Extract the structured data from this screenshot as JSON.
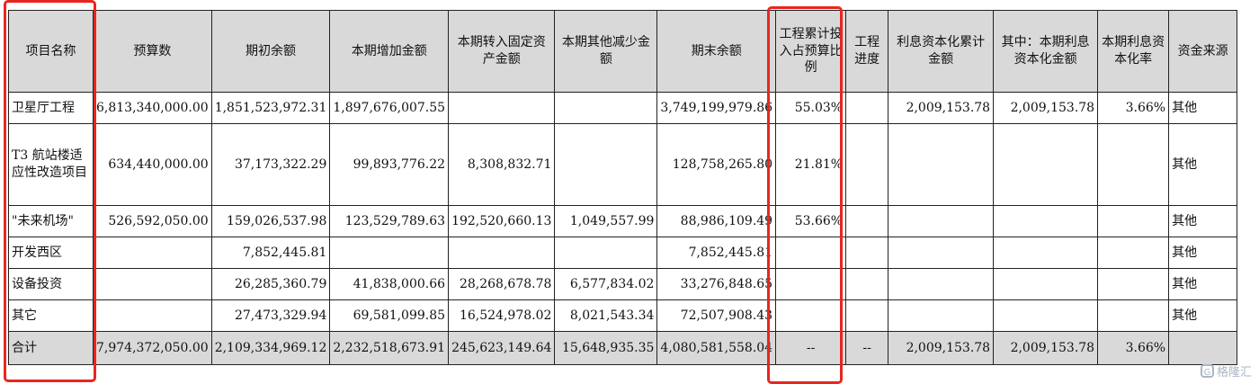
{
  "table": {
    "headers": [
      "项目名称",
      "预算数",
      "期初余额",
      "本期增加金额",
      "本期转入固定资产金额",
      "本期其他减少金额",
      "期末余额",
      "工程累计投入占预算比例",
      "工程进度",
      "利息资本化累计金额",
      "其中：本期利息资本化金额",
      "本期利息资本化率",
      "资金来源"
    ],
    "rows": [
      [
        "卫星厅工程",
        "6,813,340,000.00",
        "1,851,523,972.31",
        "1,897,676,007.55",
        "",
        "",
        "3,749,199,979.86",
        "55.03%",
        "",
        "2,009,153.78",
        "2,009,153.78",
        "3.66%",
        "其他"
      ],
      [
        "T3 航站楼适应性改造项目",
        "634,440,000.00",
        "37,173,322.29",
        "99,893,776.22",
        "8,308,832.71",
        "",
        "128,758,265.80",
        "21.81%",
        "",
        "",
        "",
        "",
        "其他"
      ],
      [
        "\"未来机场\"",
        "526,592,050.00",
        "159,026,537.98",
        "123,529,789.63",
        "192,520,660.13",
        "1,049,557.99",
        "88,986,109.49",
        "53.66%",
        "",
        "",
        "",
        "",
        "其他"
      ],
      [
        "开发西区",
        "",
        "7,852,445.81",
        "",
        "",
        "",
        "7,852,445.81",
        "",
        "",
        "",
        "",
        "",
        "其他"
      ],
      [
        "设备投资",
        "",
        "26,285,360.79",
        "41,838,000.66",
        "28,268,678.78",
        "6,577,834.02",
        "33,276,848.65",
        "",
        "",
        "",
        "",
        "",
        "其他"
      ],
      [
        "其它",
        "",
        "27,473,329.94",
        "69,581,099.85",
        "16,524,978.02",
        "8,021,543.34",
        "72,507,908.43",
        "",
        "",
        "",
        "",
        "",
        "其他"
      ],
      [
        "合计",
        "7,974,372,050.00",
        "2,109,334,969.12",
        "2,232,518,673.91",
        "245,623,149.64",
        "15,648,935.35",
        "4,080,581,558.04",
        "--",
        "--",
        "2,009,153.78",
        "2,009,153.78",
        "3.66%",
        ""
      ]
    ]
  },
  "highlight_color": "#e8261f",
  "watermark": {
    "icon": "gelonghui-logo-icon",
    "text": "格隆汇"
  }
}
